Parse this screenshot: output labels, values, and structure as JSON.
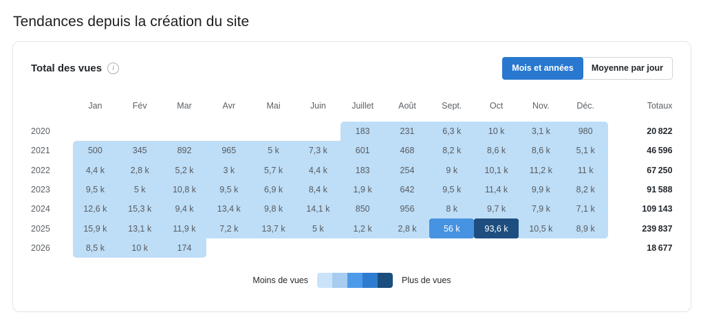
{
  "page": {
    "title": "Tendances depuis la création du site"
  },
  "card": {
    "title": "Total des vues",
    "icons": {
      "info": "i"
    },
    "toggle": {
      "months_years_label": "Mois et années",
      "daily_average_label": "Moyenne par jour"
    },
    "legend": {
      "less": "Moins de vues",
      "more": "Plus de vues"
    }
  },
  "colors": {
    "accent": "#2878cf",
    "heat_levels": {
      "1": "#beddf6",
      "3": "#4693e1",
      "5": "#1d4e7f"
    },
    "heat_text_light": "#565b61",
    "heat_text_dark_bg": "#ffffff",
    "legend_swatches": [
      "#cbe3f9",
      "#a7ccf0",
      "#4d9ae9",
      "#2e7cd0",
      "#1b4e7e"
    ]
  },
  "chart_data": {
    "type": "heatmap",
    "title": "Total des vues",
    "columns": [
      "Jan",
      "Fév",
      "Mar",
      "Avr",
      "Mai",
      "Juin",
      "Juillet",
      "Août",
      "Sept.",
      "Oct",
      "Nov.",
      "Déc."
    ],
    "totals_label": "Totaux",
    "legend": {
      "less": "Moins de vues",
      "more": "Plus de vues"
    },
    "rows": [
      {
        "year": "2020",
        "values": [
          null,
          null,
          null,
          null,
          null,
          null,
          "183",
          "231",
          "6,3 k",
          "10 k",
          "3,1 k",
          "980"
        ],
        "levels": [
          0,
          0,
          0,
          0,
          0,
          0,
          1,
          1,
          1,
          1,
          1,
          1
        ],
        "total": "20 822"
      },
      {
        "year": "2021",
        "values": [
          "500",
          "345",
          "892",
          "965",
          "5 k",
          "7,3 k",
          "601",
          "468",
          "8,2 k",
          "8,6 k",
          "8,6 k",
          "5,1 k"
        ],
        "levels": [
          1,
          1,
          1,
          1,
          1,
          1,
          1,
          1,
          1,
          1,
          1,
          1
        ],
        "total": "46 596"
      },
      {
        "year": "2022",
        "values": [
          "4,4 k",
          "2,8 k",
          "5,2 k",
          "3 k",
          "5,7 k",
          "4,4 k",
          "183",
          "254",
          "9 k",
          "10,1 k",
          "11,2 k",
          "11 k"
        ],
        "levels": [
          1,
          1,
          1,
          1,
          1,
          1,
          1,
          1,
          1,
          1,
          1,
          1
        ],
        "total": "67 250"
      },
      {
        "year": "2023",
        "values": [
          "9,5 k",
          "5 k",
          "10,8 k",
          "9,5 k",
          "6,9 k",
          "8,4 k",
          "1,9 k",
          "642",
          "9,5 k",
          "11,4 k",
          "9,9 k",
          "8,2 k"
        ],
        "levels": [
          1,
          1,
          1,
          1,
          1,
          1,
          1,
          1,
          1,
          1,
          1,
          1
        ],
        "total": "91 588"
      },
      {
        "year": "2024",
        "values": [
          "12,6 k",
          "15,3 k",
          "9,4 k",
          "13,4 k",
          "9,8 k",
          "14,1 k",
          "850",
          "956",
          "8 k",
          "9,7 k",
          "7,9 k",
          "7,1 k"
        ],
        "levels": [
          1,
          1,
          1,
          1,
          1,
          1,
          1,
          1,
          1,
          1,
          1,
          1
        ],
        "total": "109 143"
      },
      {
        "year": "2025",
        "values": [
          "15,9 k",
          "13,1 k",
          "11,9 k",
          "7,2 k",
          "13,7 k",
          "5 k",
          "1,2 k",
          "2,8 k",
          "56 k",
          "93,6 k",
          "10,5 k",
          "8,9 k"
        ],
        "levels": [
          1,
          1,
          1,
          1,
          1,
          1,
          1,
          1,
          3,
          5,
          1,
          1
        ],
        "total": "239 837"
      },
      {
        "year": "2026",
        "values": [
          "8,5 k",
          "10 k",
          "174",
          null,
          null,
          null,
          null,
          null,
          null,
          null,
          null,
          null
        ],
        "levels": [
          1,
          1,
          1,
          0,
          0,
          0,
          0,
          0,
          0,
          0,
          0,
          0
        ],
        "total": "18 677"
      }
    ]
  }
}
